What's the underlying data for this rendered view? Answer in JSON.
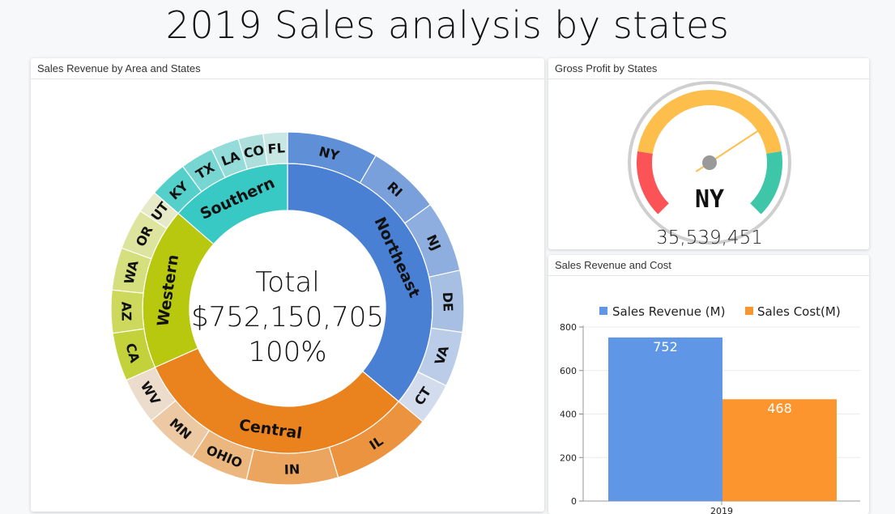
{
  "title": "2019 Sales analysis by states",
  "panels": {
    "sunburst_title": "Sales Revenue by Area and States",
    "gauge_title": "Gross Profit by States",
    "bar_title": "Sales Revenue and Cost"
  },
  "chart_data": [
    {
      "type": "sunburst",
      "title": "Sales Revenue by Area and States",
      "center": {
        "line1": "Total",
        "line2": "$752,150,705",
        "line3": "100%"
      },
      "unit": "$M (estimated)",
      "areas": [
        {
          "name": "Northeast",
          "color": "#4a80d4",
          "states": [
            {
              "name": "NY",
              "value": 62.7,
              "color": "#5f8fd6"
            },
            {
              "name": "RI",
              "value": 50.1,
              "color": "#7aa0dc"
            },
            {
              "name": "NJ",
              "value": 49.1,
              "color": "#8eaedf"
            },
            {
              "name": "DE",
              "value": 42.4,
              "color": "#a6bfe3"
            },
            {
              "name": "VA",
              "value": 38.0,
              "color": "#bacce8"
            },
            {
              "name": "CT",
              "value": 29.2,
              "color": "#d2dcec"
            }
          ]
        },
        {
          "name": "Central",
          "color": "#ea821e",
          "states": [
            {
              "name": "IL",
              "value": 69.6,
              "color": "#ec9340"
            },
            {
              "name": "IN",
              "value": 63.1,
              "color": "#eca55f"
            },
            {
              "name": "OHIO",
              "value": 40.1,
              "color": "#ecb67f"
            },
            {
              "name": "MN",
              "value": 37.2,
              "color": "#edc9a3"
            },
            {
              "name": "WV",
              "value": 32.4,
              "color": "#ecdccb"
            }
          ]
        },
        {
          "name": "Western",
          "color": "#b8c80e",
          "states": [
            {
              "name": "CA",
              "value": 33.2,
              "color": "#c3d23a"
            },
            {
              "name": "AZ",
              "value": 29.5,
              "color": "#ccd95d"
            },
            {
              "name": "WA",
              "value": 29.2,
              "color": "#d5df7e"
            },
            {
              "name": "OR",
              "value": 28.2,
              "color": "#dde49e"
            },
            {
              "name": "UT",
              "value": 15.7,
              "color": "#e7eac8"
            }
          ]
        },
        {
          "name": "Southern",
          "color": "#38c9c4",
          "states": [
            {
              "name": "KY",
              "value": 26.3,
              "color": "#55cfca"
            },
            {
              "name": "TX",
              "value": 22.8,
              "color": "#77d6d2"
            },
            {
              "name": "LA",
              "value": 19.4,
              "color": "#93dcd9"
            },
            {
              "name": "CO",
              "value": 17.1,
              "color": "#acdfdc"
            },
            {
              "name": "FL",
              "value": 16.7,
              "color": "#c8e6e3"
            }
          ]
        }
      ]
    },
    {
      "type": "gauge",
      "title": "Gross Profit by States",
      "label": "NY",
      "value_text": "35,539,451",
      "needle_fraction": 0.71,
      "bands": [
        {
          "from": 0,
          "to": 0.2,
          "color": "#fc5356"
        },
        {
          "from": 0.2,
          "to": 0.8,
          "color": "#fdbe4b"
        },
        {
          "from": 0.8,
          "to": 1,
          "color": "#3ec6a8"
        }
      ],
      "needle_color": "#fdbe4b"
    },
    {
      "type": "bar",
      "title": "Sales Revenue and Cost",
      "categories": [
        "2019"
      ],
      "series": [
        {
          "name": "Sales Revenue (M)",
          "values": [
            752
          ],
          "color": "#5f96e6"
        },
        {
          "name": "Sales Cost(M)",
          "values": [
            468
          ],
          "color": "#fd952e"
        }
      ],
      "ylim": [
        0,
        800
      ],
      "yticks": [
        "0",
        "200",
        "400",
        "600",
        "800"
      ],
      "grid": true,
      "legend": "top"
    }
  ]
}
